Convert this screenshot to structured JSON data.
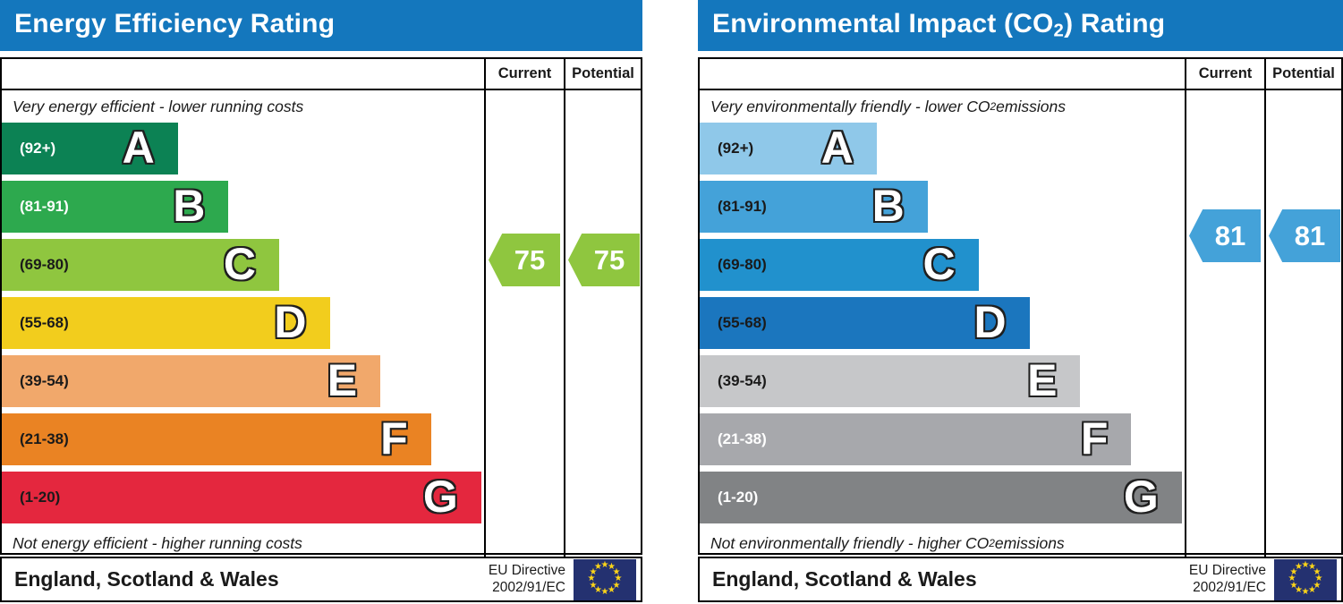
{
  "colors": {
    "header_bg": "#1477bd",
    "header_text": "#ffffff",
    "border": "#000000",
    "flag_bg": "#243170",
    "flag_star": "#ffd617"
  },
  "charts": [
    {
      "title": {
        "pre": "Energy Efficiency Rating",
        "sub": "",
        "post": ""
      },
      "header": {
        "current": "Current",
        "potential": "Potential"
      },
      "top_caption": {
        "pre": "Very energy efficient - lower running costs",
        "sub": "",
        "post": ""
      },
      "bottom_caption": {
        "pre": "Not energy efficient - higher running costs",
        "sub": "",
        "post": ""
      },
      "bands": [
        {
          "range": "(92+)",
          "letter": "A",
          "color": "#0c8254",
          "label_color": "#ffffff",
          "width_pct": 36.5
        },
        {
          "range": "(81-91)",
          "letter": "B",
          "color": "#2da94e",
          "label_color": "#ffffff",
          "width_pct": 47.0
        },
        {
          "range": "(69-80)",
          "letter": "C",
          "color": "#8fc63f",
          "label_color": "#1a1a1a",
          "width_pct": 57.5
        },
        {
          "range": "(55-68)",
          "letter": "D",
          "color": "#f2cd1d",
          "label_color": "#1a1a1a",
          "width_pct": 68.0
        },
        {
          "range": "(39-54)",
          "letter": "E",
          "color": "#f1a86b",
          "label_color": "#1a1a1a",
          "width_pct": 78.5
        },
        {
          "range": "(21-38)",
          "letter": "F",
          "color": "#ea8323",
          "label_color": "#1a1a1a",
          "width_pct": 89.0
        },
        {
          "range": "(1-20)",
          "letter": "G",
          "color": "#e4273e",
          "label_color": "#1a1a1a",
          "width_pct": 99.4
        }
      ],
      "arrows": {
        "current": {
          "value": "75",
          "color": "#8fc63f"
        },
        "potential": {
          "value": "75",
          "color": "#8fc63f"
        }
      },
      "footer": {
        "region": "England, Scotland & Wales",
        "directive_line1": "EU Directive",
        "directive_line2": "2002/91/EC"
      }
    },
    {
      "title": {
        "pre": "Environmental Impact (CO",
        "sub": "2",
        "post": ") Rating"
      },
      "header": {
        "current": "Current",
        "potential": "Potential"
      },
      "top_caption": {
        "pre": "Very environmentally friendly - lower CO",
        "sub": "2",
        "post": " emissions"
      },
      "bottom_caption": {
        "pre": "Not environmentally friendly - higher CO",
        "sub": "2",
        "post": " emissions"
      },
      "bands": [
        {
          "range": "(92+)",
          "letter": "A",
          "color": "#8fc8e9",
          "label_color": "#1a1a1a",
          "width_pct": 36.5
        },
        {
          "range": "(81-91)",
          "letter": "B",
          "color": "#44a2d9",
          "label_color": "#1a1a1a",
          "width_pct": 47.0
        },
        {
          "range": "(69-80)",
          "letter": "C",
          "color": "#2191cd",
          "label_color": "#1a1a1a",
          "width_pct": 57.5
        },
        {
          "range": "(55-68)",
          "letter": "D",
          "color": "#1b76be",
          "label_color": "#1a1a1a",
          "width_pct": 68.0
        },
        {
          "range": "(39-54)",
          "letter": "E",
          "color": "#c6c7c9",
          "label_color": "#1a1a1a",
          "width_pct": 78.5
        },
        {
          "range": "(21-38)",
          "letter": "F",
          "color": "#a7a8ac",
          "label_color": "#ffffff",
          "width_pct": 89.0
        },
        {
          "range": "(1-20)",
          "letter": "G",
          "color": "#818385",
          "label_color": "#ffffff",
          "width_pct": 99.4
        }
      ],
      "arrows": {
        "current": {
          "value": "81",
          "color": "#44a2d9"
        },
        "potential": {
          "value": "81",
          "color": "#44a2d9"
        }
      },
      "footer": {
        "region": "England, Scotland & Wales",
        "directive_line1": "EU Directive",
        "directive_line2": "2002/91/EC"
      }
    }
  ],
  "chart_data": [
    {
      "type": "bar",
      "title": "Energy Efficiency Rating",
      "categories": [
        "A (92+)",
        "B (81-91)",
        "C (69-80)",
        "D (55-68)",
        "E (39-54)",
        "F (21-38)",
        "G (1-20)"
      ],
      "band_colors": [
        "#0c8254",
        "#2da94e",
        "#8fc63f",
        "#f2cd1d",
        "#f1a86b",
        "#ea8323",
        "#e4273e"
      ],
      "current": 75,
      "potential": 75,
      "current_band": "C",
      "potential_band": "C",
      "top_label": "Very energy efficient - lower running costs",
      "bottom_label": "Not energy efficient - higher running costs",
      "region": "England, Scotland & Wales",
      "directive": "EU Directive 2002/91/EC",
      "legend_position": "none",
      "grid": false
    },
    {
      "type": "bar",
      "title": "Environmental Impact (CO2) Rating",
      "categories": [
        "A (92+)",
        "B (81-91)",
        "C (69-80)",
        "D (55-68)",
        "E (39-54)",
        "F (21-38)",
        "G (1-20)"
      ],
      "band_colors": [
        "#8fc8e9",
        "#44a2d9",
        "#2191cd",
        "#1b76be",
        "#c6c7c9",
        "#a7a8ac",
        "#818385"
      ],
      "current": 81,
      "potential": 81,
      "current_band": "B",
      "potential_band": "B",
      "top_label": "Very environmentally friendly - lower CO2 emissions",
      "bottom_label": "Not environmentally friendly - higher CO2 emissions",
      "region": "England, Scotland & Wales",
      "directive": "EU Directive 2002/91/EC",
      "legend_position": "none",
      "grid": false
    }
  ]
}
